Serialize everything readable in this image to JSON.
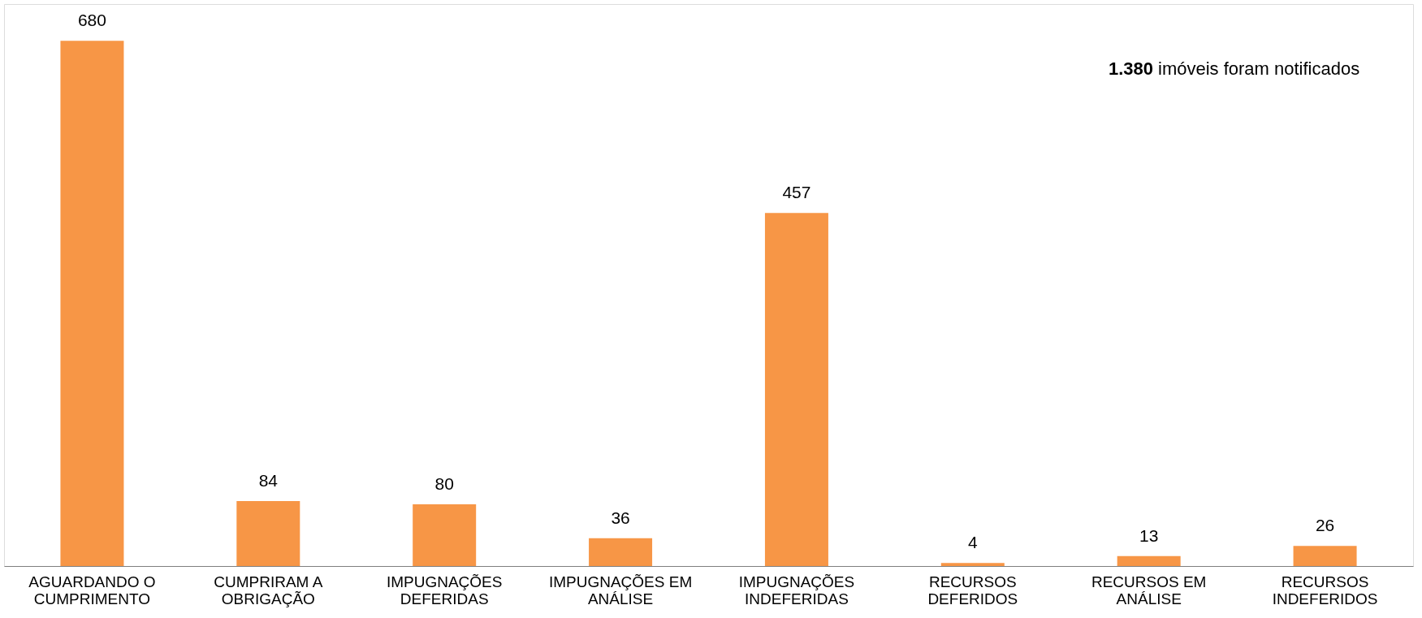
{
  "chart_data": {
    "type": "bar",
    "categories": [
      "AGUARDANDO O CUMPRIMENTO",
      "CUMPRIRAM A OBRIGAÇÃO",
      "IMPUGNAÇÕES DEFERIDAS",
      "IMPUGNAÇÕES EM ANÁLISE",
      "IMPUGNAÇÕES INDEFERIDAS",
      "RECURSOS DEFERIDOS",
      "RECURSOS EM ANÁLISE",
      "RECURSOS INDEFERIDOS"
    ],
    "values": [
      680,
      84,
      80,
      36,
      457,
      4,
      13,
      26
    ],
    "color": "#f79646",
    "data_labels": true,
    "grid": false,
    "annotations": [
      "1.380 imóveis foram notificados"
    ]
  }
}
